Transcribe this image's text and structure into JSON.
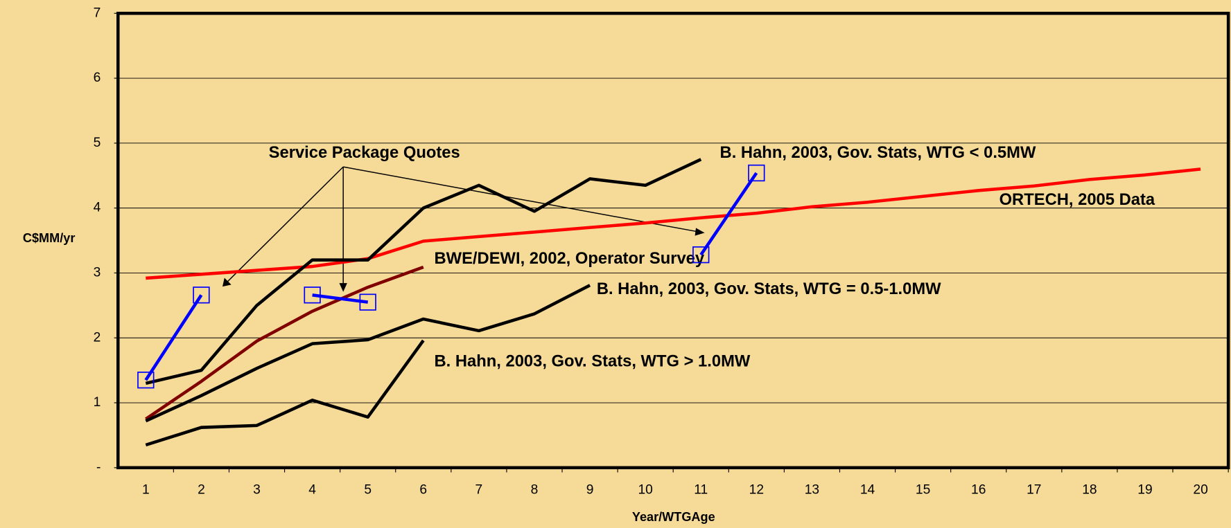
{
  "chart_data": {
    "type": "line",
    "x_label": "Year/WTGAge",
    "y_label": "C$MM/yr",
    "x": [
      1,
      2,
      3,
      4,
      5,
      6,
      7,
      8,
      9,
      10,
      11,
      12,
      13,
      14,
      15,
      16,
      17,
      18,
      19,
      20
    ],
    "xlim": [
      0.5,
      20.5
    ],
    "xticks": [
      1,
      2,
      3,
      4,
      5,
      6,
      7,
      8,
      9,
      10,
      11,
      12,
      13,
      14,
      15,
      16,
      17,
      18,
      19,
      20
    ],
    "ylim": [
      0,
      7
    ],
    "yticks": [
      {
        "value": 0,
        "label": "-"
      },
      1,
      2,
      3,
      4,
      5,
      6,
      7
    ],
    "grid": true,
    "series": [
      {
        "name": "ORTECH, 2005 Data",
        "color": "#ff0000",
        "values": [
          2.92,
          2.98,
          3.04,
          3.1,
          3.22,
          3.49,
          3.56,
          3.63,
          3.7,
          3.77,
          3.85,
          3.92,
          4.02,
          4.09,
          4.18,
          4.27,
          4.34,
          4.44,
          4.51,
          4.6
        ]
      },
      {
        "name": "B. Hahn, 2003, Gov. Stats, WTG < 0.5MW",
        "color": "#000000",
        "values": [
          1.3,
          1.5,
          2.5,
          3.2,
          3.2,
          4.0,
          4.35,
          3.95,
          4.45,
          4.35,
          4.75,
          null,
          null,
          null,
          null,
          null,
          null,
          null,
          null,
          null
        ]
      },
      {
        "name": "BWE/DEWI, 2002, Operator Survey",
        "color": "#800000",
        "values": [
          0.75,
          1.33,
          1.95,
          2.41,
          2.78,
          3.09,
          null,
          null,
          null,
          null,
          null,
          null,
          null,
          null,
          null,
          null,
          null,
          null,
          null,
          null
        ]
      },
      {
        "name": "B. Hahn, 2003, Gov. Stats, WTG = 0.5-1.0MW",
        "color": "#000000",
        "values": [
          0.72,
          1.11,
          1.53,
          1.91,
          1.97,
          2.29,
          2.11,
          2.37,
          2.81,
          null,
          null,
          null,
          null,
          null,
          null,
          null,
          null,
          null,
          null,
          null
        ]
      },
      {
        "name": "B. Hahn, 2003, Gov. Stats, WTG > 1.0MW",
        "color": "#000000",
        "values": [
          0.35,
          0.62,
          0.65,
          1.04,
          0.78,
          1.96,
          null,
          null,
          null,
          null,
          null,
          null,
          null,
          null,
          null,
          null,
          null,
          null,
          null,
          null
        ]
      },
      {
        "name": "Service Package Quotes",
        "color": "#0000ff",
        "marker": "square",
        "values": [
          1.35,
          2.66,
          null,
          2.66,
          2.55,
          null,
          null,
          null,
          null,
          null,
          3.28,
          4.54,
          null,
          null,
          null,
          null,
          null,
          null,
          null,
          null
        ]
      }
    ]
  }
}
